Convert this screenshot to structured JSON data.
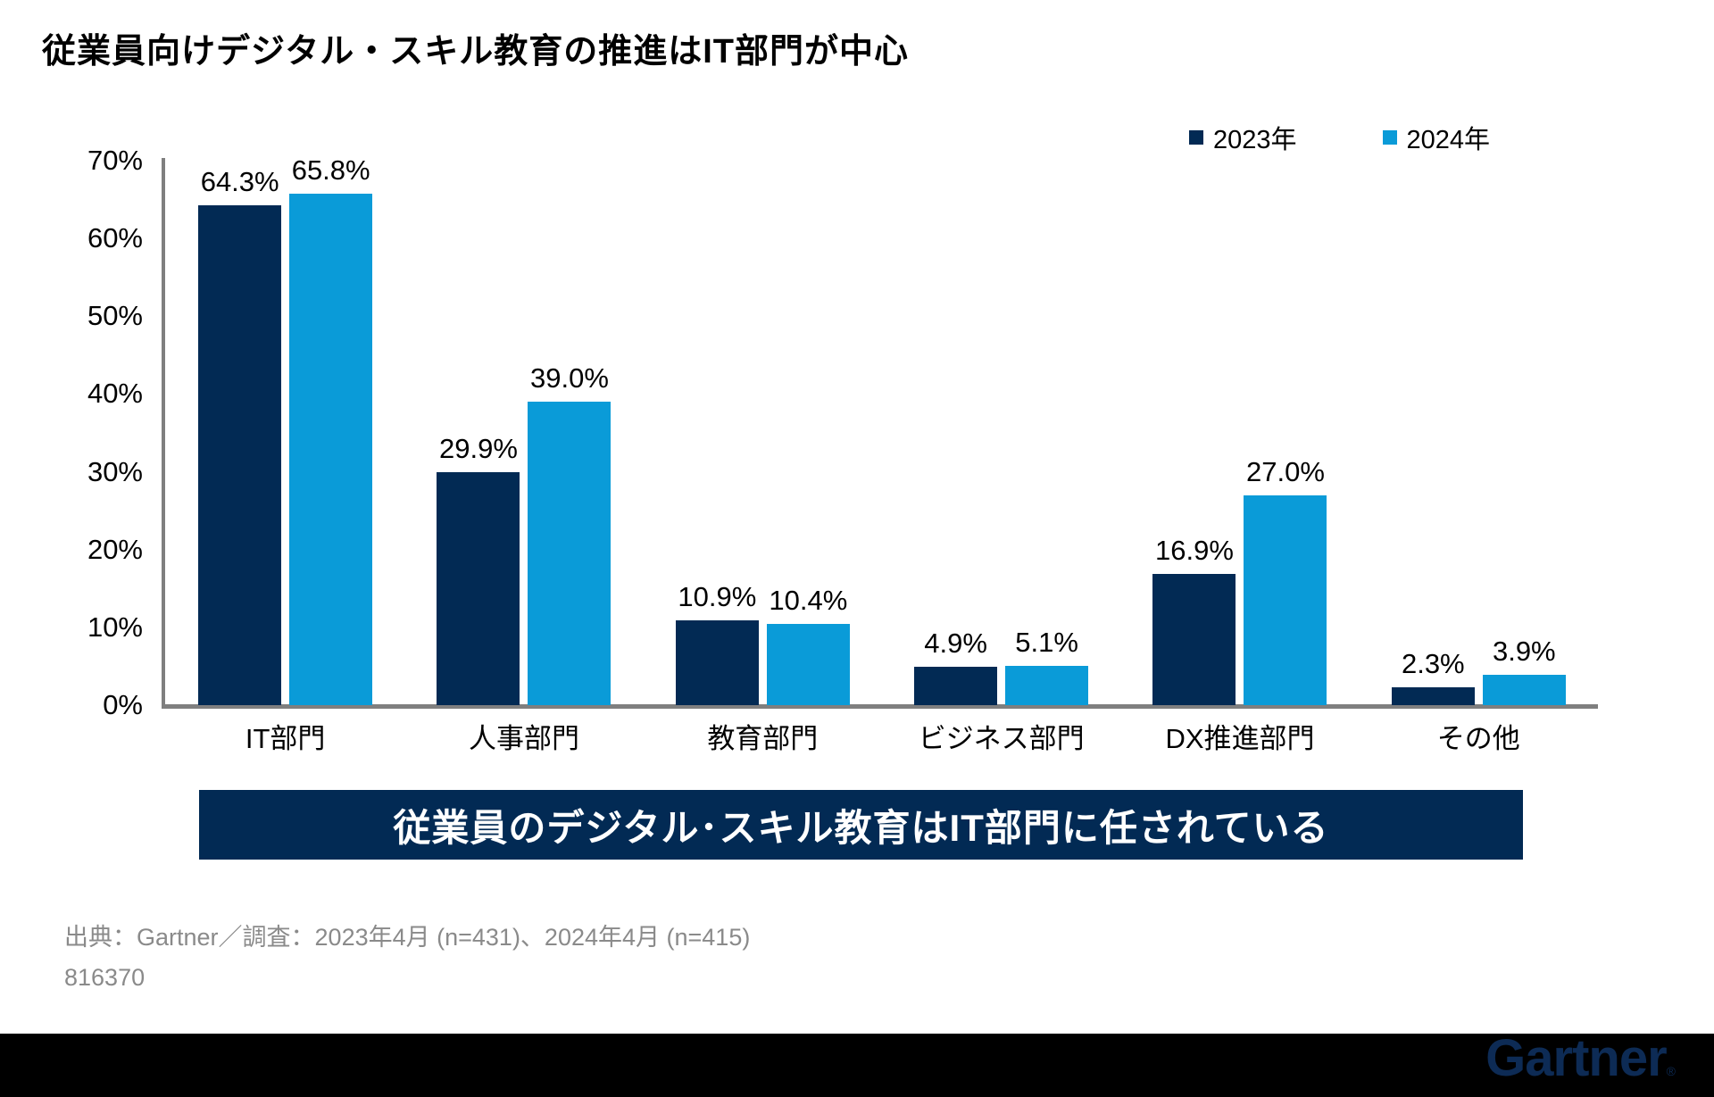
{
  "title": "従業員向けデジタル・スキル教育の推進はIT部門が中心",
  "legend": [
    {
      "label": "2023年",
      "color": "#022A54"
    },
    {
      "label": "2024年",
      "color": "#0A9BD8"
    }
  ],
  "chart_data": {
    "type": "bar",
    "categories": [
      "IT部門",
      "人事部門",
      "教育部門",
      "ビジネス部門",
      "DX推進部門",
      "その他"
    ],
    "series": [
      {
        "name": "2023年",
        "color": "#022A54",
        "values": [
          64.3,
          29.9,
          10.9,
          4.9,
          16.9,
          2.3
        ]
      },
      {
        "name": "2024年",
        "color": "#0A9BD8",
        "values": [
          65.8,
          39.0,
          10.4,
          5.1,
          27.0,
          3.9
        ]
      }
    ],
    "title": "従業員向けデジタル・スキル教育の推進はIT部門が中心",
    "xlabel": "",
    "ylabel": "",
    "ylim": [
      0,
      70
    ],
    "ytick_labels": [
      "0%",
      "10%",
      "20%",
      "30%",
      "40%",
      "50%",
      "60%",
      "70%"
    ],
    "value_label_suffix": "%",
    "grid": false,
    "legend_position": "top-right",
    "axis_color": "#7F7F7F"
  },
  "banner": {
    "text": "従業員のデジタル･スキル教育はIT部門に任されている",
    "bg": "#022A54",
    "fg": "#FFFFFF"
  },
  "footer": {
    "source": "出典：Gartner／調査：2023年4月 (n=431)、2024年4月 (n=415)",
    "doc_id": "816370"
  },
  "brand": {
    "logo_text": "Gartner",
    "reg_mark": "®",
    "logo_color": "#0D2B55",
    "bar_color": "#000000"
  }
}
